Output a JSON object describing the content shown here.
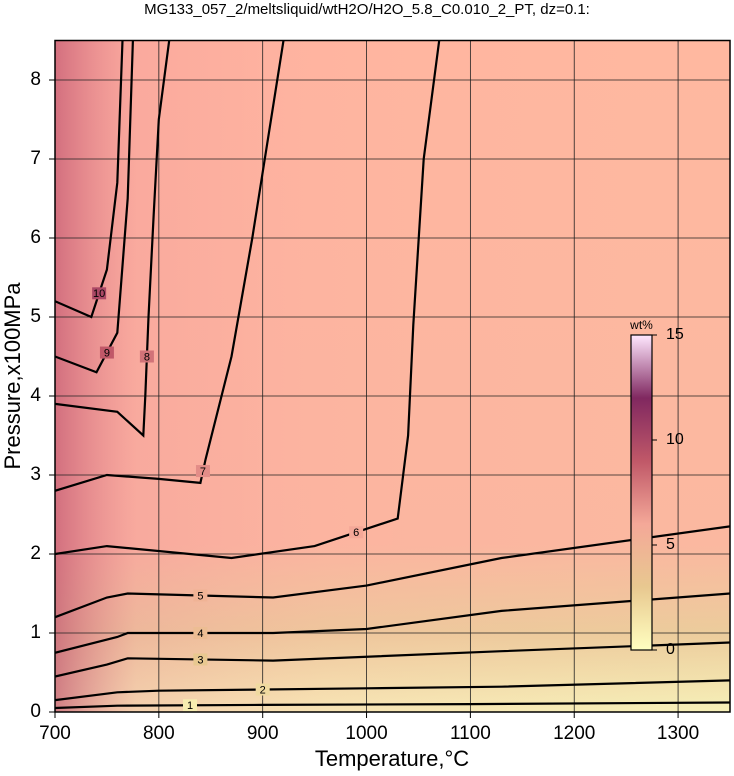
{
  "chart_data": {
    "type": "contour",
    "title": "MG133_057_2/meltsliquid/wtH2O/H2O_5.8_C0.010_2_PT, dz=0.1:",
    "x_label": "Temperature,°C",
    "y_label": "Pressure,x100MPa",
    "xlim": [
      700,
      1350
    ],
    "ylim": [
      0,
      8.5
    ],
    "xticks": [
      700,
      800,
      900,
      1000,
      1100,
      1200,
      1300
    ],
    "yticks": [
      0,
      1,
      2,
      3,
      4,
      5,
      6,
      7,
      8
    ],
    "grid": true,
    "colorbar": {
      "label": "wt%",
      "lim": [
        0,
        15
      ],
      "ticks": [
        0,
        5,
        10,
        15
      ],
      "colors": [
        "#ffffc0",
        "#e8c890",
        "#f4a898",
        "#c05868",
        "#802860",
        "#ffe8ff"
      ]
    },
    "series": [
      {
        "name": "1",
        "level": 1,
        "x": [
          700,
          760,
          900,
          1100,
          1350
        ],
        "y": [
          0.05,
          0.08,
          0.09,
          0.1,
          0.12
        ]
      },
      {
        "name": "2",
        "level": 2,
        "x": [
          700,
          760,
          800,
          1000,
          1130,
          1350
        ],
        "y": [
          0.15,
          0.25,
          0.27,
          0.3,
          0.32,
          0.4
        ]
      },
      {
        "name": "3",
        "level": 3,
        "x": [
          700,
          750,
          770,
          910,
          1130,
          1350
        ],
        "y": [
          0.45,
          0.6,
          0.68,
          0.65,
          0.77,
          0.88
        ]
      },
      {
        "name": "4",
        "level": 4,
        "x": [
          700,
          760,
          770,
          910,
          1000,
          1130,
          1350
        ],
        "y": [
          0.75,
          0.95,
          1.0,
          1.0,
          1.05,
          1.28,
          1.5
        ]
      },
      {
        "name": "5",
        "level": 5,
        "x": [
          700,
          750,
          770,
          910,
          1000,
          1130,
          1350
        ],
        "y": [
          1.2,
          1.45,
          1.5,
          1.45,
          1.6,
          1.95,
          2.35
        ]
      },
      {
        "name": "6",
        "level": 6,
        "x": [
          700,
          750,
          870,
          950,
          1030,
          1040,
          1045,
          1055,
          1070
        ],
        "y": [
          2.0,
          2.1,
          1.95,
          2.1,
          2.45,
          3.5,
          4.9,
          7.0,
          8.5
        ]
      },
      {
        "name": "7",
        "level": 7,
        "x": [
          700,
          750,
          800,
          840,
          845,
          870,
          890,
          920
        ],
        "y": [
          2.8,
          3.0,
          2.95,
          2.9,
          3.2,
          4.5,
          6.0,
          8.5
        ]
      },
      {
        "name": "8",
        "level": 8,
        "x": [
          700,
          760,
          785,
          787,
          790,
          795,
          800,
          810
        ],
        "y": [
          3.9,
          3.8,
          3.5,
          4.0,
          5.0,
          6.3,
          7.5,
          8.5
        ]
      },
      {
        "name": "9",
        "level": 9,
        "x": [
          700,
          740,
          760,
          770,
          775
        ],
        "y": [
          4.5,
          4.3,
          4.8,
          6.5,
          8.5
        ]
      },
      {
        "name": "10",
        "level": 10,
        "x": [
          700,
          735,
          750,
          760,
          765
        ],
        "y": [
          5.2,
          5.0,
          5.6,
          6.7,
          8.5
        ]
      }
    ]
  }
}
